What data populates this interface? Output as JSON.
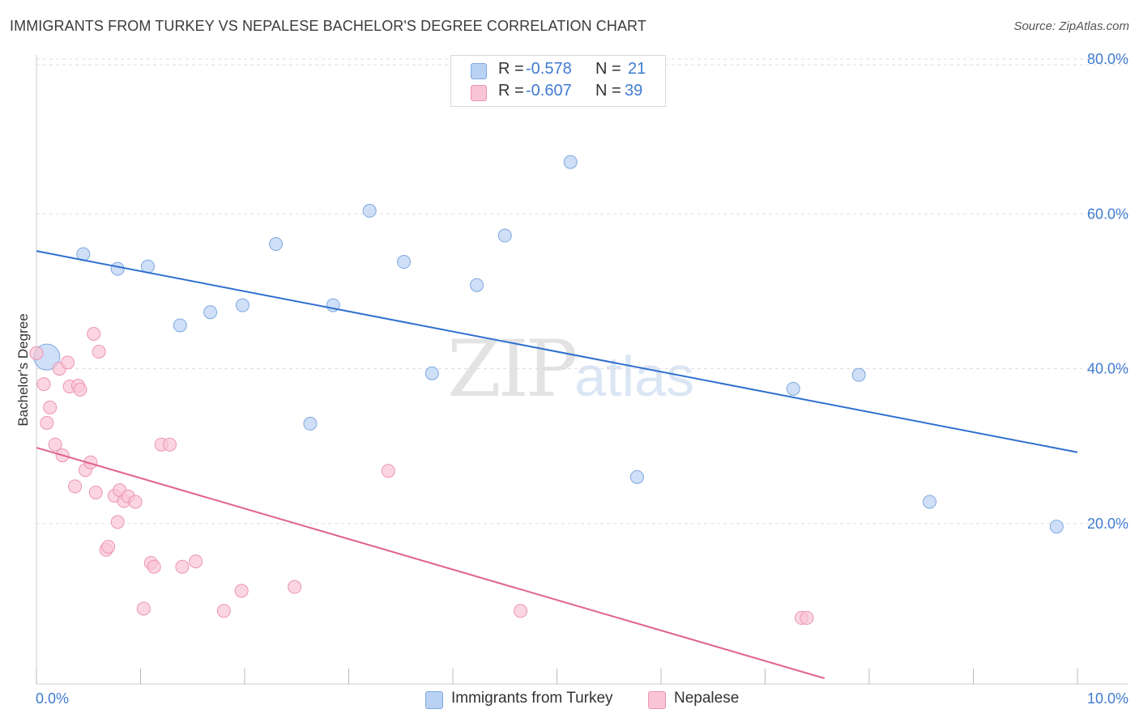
{
  "title": "IMMIGRANTS FROM TURKEY VS NEPALESE BACHELOR'S DEGREE CORRELATION CHART",
  "source": "Source: ZipAtlas.com",
  "watermark": {
    "zip": "ZIP",
    "atlas": "atlas"
  },
  "legend": {
    "rows": [
      {
        "r_label": "R =",
        "r_value": "-0.578",
        "n_label": "N =",
        "n_value": "21",
        "color": "#b9d2f3",
        "border": "#7ea7e0"
      },
      {
        "r_label": "R =",
        "r_value": "-0.607",
        "n_label": "N =",
        "n_value": "39",
        "color": "#f9c4d6",
        "border": "#ec94b2"
      }
    ]
  },
  "bottom_legend": [
    {
      "label": "Immigrants from Turkey",
      "color": "#b9d2f3",
      "border": "#7ea7e0"
    },
    {
      "label": "Nepalese",
      "color": "#f9c4d6",
      "border": "#ec94b2"
    }
  ],
  "chart_data": {
    "type": "scatter",
    "title": "IMMIGRANTS FROM TURKEY VS NEPALESE BACHELOR'S DEGREE CORRELATION CHART",
    "xlabel": "",
    "ylabel": "Bachelor's Degree",
    "xlim": [
      0,
      10
    ],
    "ylim": [
      0,
      80
    ],
    "x_tick_labels": [
      "0.0%",
      "10.0%"
    ],
    "y_tick_labels": [
      "20.0%",
      "40.0%",
      "60.0%",
      "80.0%"
    ],
    "y_ticks": [
      20,
      40,
      60,
      80
    ],
    "x_minor_ticks": [
      0,
      1,
      2,
      3,
      4,
      5,
      6,
      7,
      8,
      9,
      10
    ],
    "grid": true,
    "legend_position": "top-center",
    "series": [
      {
        "name": "Immigrants from Turkey",
        "color": "#7ea7e0",
        "fill": "#b9d2f3",
        "line_color": "#2f6fcf",
        "trend": [
          [
            0,
            55.2
          ],
          [
            10,
            29.2
          ]
        ],
        "points": [
          {
            "x": 0.1,
            "y": 41.5,
            "big": true
          },
          {
            "x": 0.45,
            "y": 54.8
          },
          {
            "x": 0.78,
            "y": 52.9
          },
          {
            "x": 1.07,
            "y": 53.2
          },
          {
            "x": 1.38,
            "y": 45.6
          },
          {
            "x": 1.67,
            "y": 47.3
          },
          {
            "x": 1.98,
            "y": 48.2
          },
          {
            "x": 2.3,
            "y": 56.1
          },
          {
            "x": 2.63,
            "y": 32.9
          },
          {
            "x": 2.85,
            "y": 48.2
          },
          {
            "x": 3.2,
            "y": 60.4
          },
          {
            "x": 3.53,
            "y": 53.8
          },
          {
            "x": 3.8,
            "y": 39.4
          },
          {
            "x": 4.23,
            "y": 50.8
          },
          {
            "x": 4.5,
            "y": 57.2
          },
          {
            "x": 5.13,
            "y": 66.7
          },
          {
            "x": 5.77,
            "y": 26.0
          },
          {
            "x": 7.27,
            "y": 37.4
          },
          {
            "x": 7.9,
            "y": 39.2
          },
          {
            "x": 8.58,
            "y": 22.8
          },
          {
            "x": 9.8,
            "y": 19.6
          }
        ]
      },
      {
        "name": "Nepalese",
        "color": "#ec94b2",
        "fill": "#f9c4d6",
        "line_color": "#e0628e",
        "trend": [
          [
            0,
            29.8
          ],
          [
            7.57,
            0
          ]
        ],
        "points": [
          {
            "x": 0.0,
            "y": 42.0
          },
          {
            "x": 0.07,
            "y": 38.0
          },
          {
            "x": 0.1,
            "y": 33.0
          },
          {
            "x": 0.13,
            "y": 35.0
          },
          {
            "x": 0.18,
            "y": 30.2
          },
          {
            "x": 0.22,
            "y": 40.0
          },
          {
            "x": 0.25,
            "y": 28.8
          },
          {
            "x": 0.3,
            "y": 40.8
          },
          {
            "x": 0.32,
            "y": 37.7
          },
          {
            "x": 0.37,
            "y": 24.8
          },
          {
            "x": 0.4,
            "y": 37.8
          },
          {
            "x": 0.42,
            "y": 37.3
          },
          {
            "x": 0.47,
            "y": 26.9
          },
          {
            "x": 0.52,
            "y": 27.9
          },
          {
            "x": 0.55,
            "y": 44.5
          },
          {
            "x": 0.57,
            "y": 24.0
          },
          {
            "x": 0.6,
            "y": 42.2
          },
          {
            "x": 0.67,
            "y": 16.6
          },
          {
            "x": 0.69,
            "y": 17.0
          },
          {
            "x": 0.75,
            "y": 23.6
          },
          {
            "x": 0.78,
            "y": 20.2
          },
          {
            "x": 0.8,
            "y": 24.3
          },
          {
            "x": 0.84,
            "y": 22.9
          },
          {
            "x": 0.88,
            "y": 23.5
          },
          {
            "x": 0.95,
            "y": 22.8
          },
          {
            "x": 1.03,
            "y": 9.0
          },
          {
            "x": 1.1,
            "y": 14.9
          },
          {
            "x": 1.13,
            "y": 14.4
          },
          {
            "x": 1.2,
            "y": 30.2
          },
          {
            "x": 1.28,
            "y": 30.2
          },
          {
            "x": 1.4,
            "y": 14.4
          },
          {
            "x": 1.53,
            "y": 15.1
          },
          {
            "x": 1.8,
            "y": 8.7
          },
          {
            "x": 1.97,
            "y": 11.3
          },
          {
            "x": 2.48,
            "y": 11.8
          },
          {
            "x": 3.38,
            "y": 26.8
          },
          {
            "x": 4.65,
            "y": 8.7
          },
          {
            "x": 7.35,
            "y": 7.8
          },
          {
            "x": 7.4,
            "y": 7.8
          }
        ]
      }
    ]
  }
}
